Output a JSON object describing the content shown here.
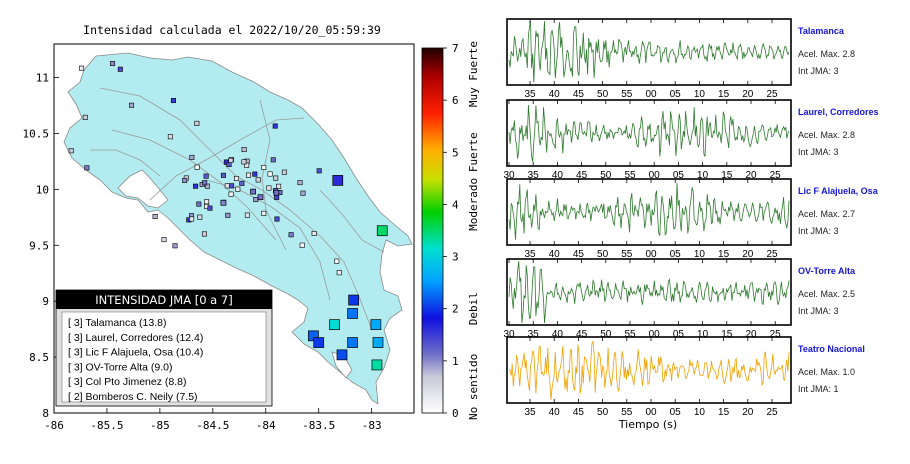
{
  "map": {
    "title": "Intensidad calculada el 2022/10/20_05:59:39",
    "x_ticks": [
      "-86",
      "-85.5",
      "-85",
      "-84.5",
      "-84",
      "-83.5",
      "-83"
    ],
    "y_ticks": [
      "11",
      "10.5",
      "10",
      "9.5",
      "9",
      "8.5",
      "8"
    ],
    "legend_title": "INTENSIDAD JMA [0 a 7]",
    "legend_items": [
      "[ 3]  Talamanca (13.8)",
      "[ 3]  Laurel, Corredores (12.4)",
      "[ 3]  Lic F Alajuela, Osa (10.4)",
      "[ 3]  OV-Torre Alta (9.0)",
      "[ 3]  Col Pto Jimenez (8.8)",
      "[ 2]  Bomberos C. Neily (7.5)"
    ]
  },
  "colorbar": {
    "ticks": [
      "0",
      "1",
      "2",
      "3",
      "4",
      "5",
      "6",
      "7"
    ],
    "levels": [
      "No sentido",
      "Debil",
      "Moderado",
      "Fuerte",
      "Muy Fuerte"
    ]
  },
  "waveforms": {
    "xlabel": "Tiempo (s)",
    "panels": [
      {
        "name": "Talamanca",
        "acc": "Acel. Max. 2.8",
        "jma": "Int JMA: 3",
        "color": "#2f7a2f",
        "ticks": [
          "35",
          "40",
          "45",
          "50",
          "55",
          "00",
          "05",
          "10",
          "15",
          "20",
          "25",
          "30"
        ]
      },
      {
        "name": "Laurel, Corredores",
        "acc": "Acel. Max. 2.8",
        "jma": "Int JMA: 3",
        "color": "#2f7a2f",
        "ticks": [
          "30",
          "35",
          "40",
          "45",
          "50",
          "55",
          "00",
          "05",
          "10",
          "15",
          "20",
          "25"
        ]
      },
      {
        "name": "Lic F Alajuela, Osa",
        "acc": "Acel. Max. 2.7",
        "jma": "Int JMA: 3",
        "color": "#2f7a2f",
        "ticks": [
          "35",
          "40",
          "45",
          "50",
          "55",
          "00",
          "05",
          "10",
          "15",
          "20",
          "25",
          "30"
        ]
      },
      {
        "name": "OV-Torre Alta",
        "acc": "Acel. Max. 2.5",
        "jma": "Int JMA: 3",
        "color": "#2f7a2f",
        "ticks": [
          "30",
          "35",
          "40",
          "45",
          "50",
          "55",
          "00",
          "05",
          "10",
          "15",
          "20",
          "25"
        ]
      },
      {
        "name": "Teatro Nacional",
        "acc": "Acel. Max. 1.0",
        "jma": "Int JMA: 1",
        "color": "#f0a000",
        "ticks": [
          "35",
          "40",
          "45",
          "50",
          "55",
          "00",
          "05",
          "10",
          "15",
          "20",
          "25",
          "30"
        ]
      }
    ]
  },
  "chart_data": {
    "type": "scatter",
    "title": "Intensidad calculada el 2022/10/20_05:59:39",
    "xlim": [
      -86,
      -82.6
    ],
    "ylim": [
      8,
      11.3
    ],
    "colorbar_range": [
      0,
      7
    ],
    "points": [
      {
        "lon": -83.55,
        "lat": 8.69,
        "v": 2.2
      },
      {
        "lon": -83.35,
        "lat": 8.79,
        "v": 3.1
      },
      {
        "lon": -83.18,
        "lat": 8.89,
        "v": 2.3
      },
      {
        "lon": -83.17,
        "lat": 9.01,
        "v": 2.0
      },
      {
        "lon": -83.5,
        "lat": 8.63,
        "v": 2.0
      },
      {
        "lon": -83.18,
        "lat": 8.63,
        "v": 2.3
      },
      {
        "lon": -82.96,
        "lat": 8.79,
        "v": 2.6
      },
      {
        "lon": -82.94,
        "lat": 8.63,
        "v": 2.6
      },
      {
        "lon": -82.95,
        "lat": 8.43,
        "v": 3.3
      },
      {
        "lon": -83.28,
        "lat": 8.52,
        "v": 2.1
      },
      {
        "lon": -82.9,
        "lat": 9.63,
        "v": 3.5
      },
      {
        "lon": -83.32,
        "lat": 10.08,
        "v": 1.6
      },
      {
        "lon": -84.12,
        "lat": 9.98,
        "v": 1.1
      },
      {
        "lon": -84.05,
        "lat": 9.93,
        "v": 1.1
      },
      {
        "lon": -83.9,
        "lat": 9.97,
        "v": 1.1
      },
      {
        "lon": -84.4,
        "lat": 9.88,
        "v": 1.0
      }
    ]
  }
}
